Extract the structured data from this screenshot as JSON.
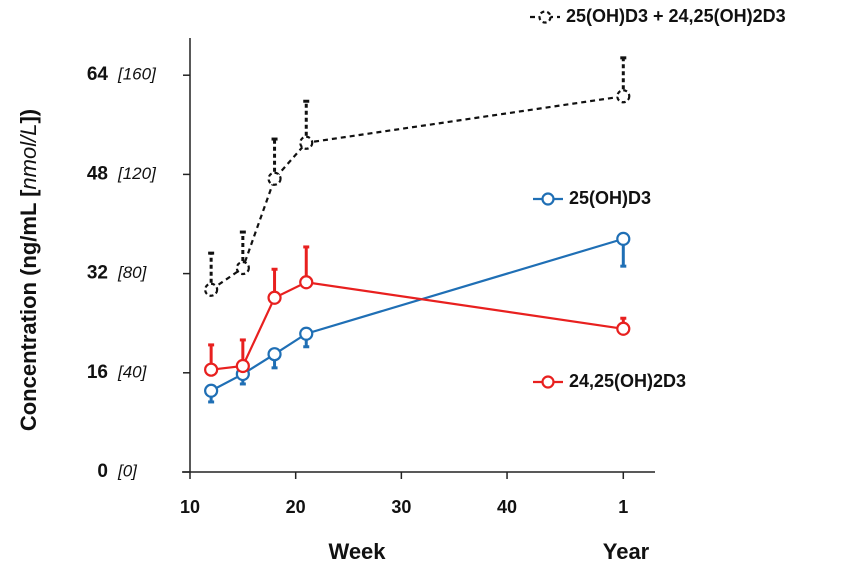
{
  "chart_data": {
    "type": "line",
    "y_label_parts": [
      "Concentration (ng/mL [",
      "nmol/L",
      "])"
    ],
    "x_labels": [
      "Week",
      "Year"
    ],
    "xlim": [
      10,
      54
    ],
    "xticks": [
      10,
      20,
      30,
      40,
      {
        "value": 51,
        "label": "1"
      }
    ],
    "ylim": [
      0,
      70
    ],
    "yticks": [
      {
        "value": 0,
        "label": "0",
        "secondary_label": "[0]"
      },
      {
        "value": 16,
        "label": "16",
        "secondary_label": "[40]"
      },
      {
        "value": 32,
        "label": "32",
        "secondary_label": "[80]"
      },
      {
        "value": 48,
        "label": "48",
        "secondary_label": "[120]"
      },
      {
        "value": 64,
        "label": "64",
        "secondary_label": "[160]"
      }
    ],
    "x": [
      12,
      15,
      18,
      21,
      51
    ],
    "series": [
      {
        "name": "25(OH)D3 + 24,25(OH)2D3",
        "color": "#111111",
        "dashed": true,
        "values": [
          29.4,
          32.9,
          47.3,
          53.1,
          60.6
        ],
        "errors": [
          5.9,
          5.8,
          6.4,
          6.7,
          6.2
        ],
        "error_direction": "up"
      },
      {
        "name": "25(OH)D3",
        "color": "#1f6fb5",
        "dashed": false,
        "values": [
          13.1,
          15.8,
          19.0,
          22.3,
          37.6
        ],
        "errors": [
          1.8,
          1.6,
          2.2,
          2.1,
          4.4
        ],
        "error_direction": "down"
      },
      {
        "name": "24,25(OH)2D3",
        "color": "#e8201f",
        "dashed": false,
        "values": [
          16.5,
          17.1,
          28.1,
          30.6,
          23.1
        ],
        "errors": [
          4.0,
          4.2,
          4.6,
          5.7,
          1.7
        ],
        "error_direction": "up"
      }
    ]
  }
}
